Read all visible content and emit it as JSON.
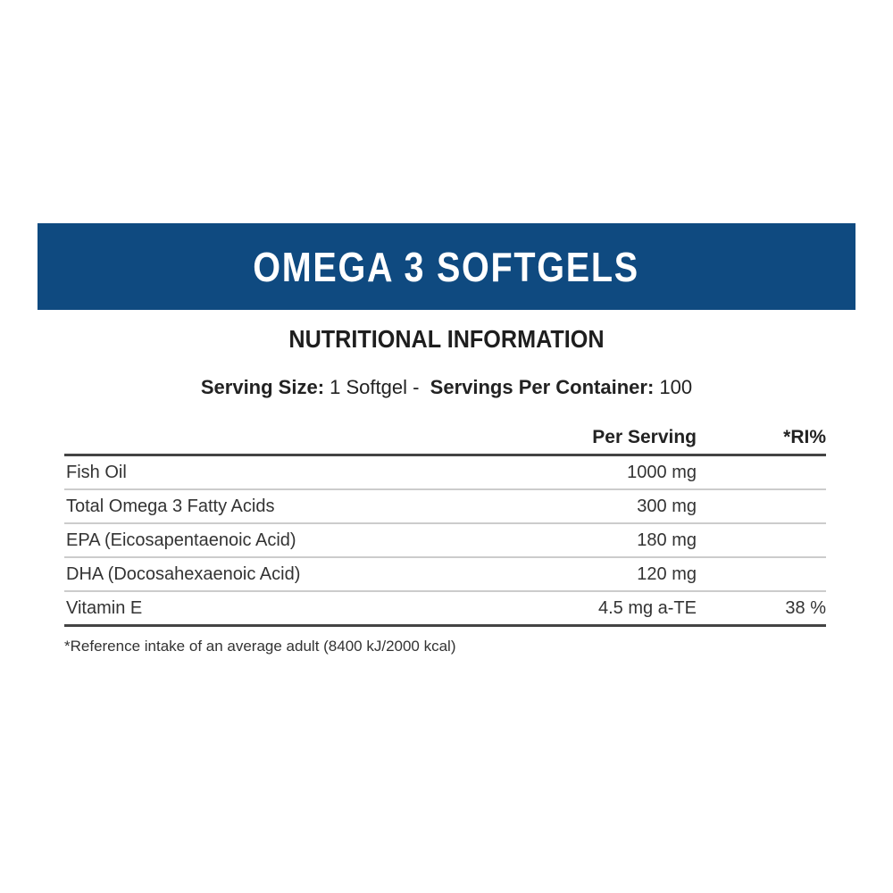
{
  "banner": {
    "title": "OMEGA 3 SOFTGELS",
    "color": "#0f4a80"
  },
  "subtitle": "NUTRITIONAL INFORMATION",
  "serving": {
    "size_label": "Serving Size:",
    "size_value": "1 Softgel -",
    "per_container_label": "Servings Per Container:",
    "per_container_value": "100"
  },
  "table": {
    "headers": [
      "",
      "Per Serving",
      "*RI%"
    ],
    "rows": [
      {
        "name": "Fish Oil",
        "per_serving": "1000 mg",
        "ri": ""
      },
      {
        "name": "Total Omega 3 Fatty Acids",
        "per_serving": "300 mg",
        "ri": ""
      },
      {
        "name": "EPA (Eicosapentaenoic Acid)",
        "per_serving": "180 mg",
        "ri": ""
      },
      {
        "name": "DHA (Docosahexaenoic Acid)",
        "per_serving": "120 mg",
        "ri": ""
      },
      {
        "name": "Vitamin E",
        "per_serving": "4.5 mg a-TE",
        "ri": "38 %"
      }
    ]
  },
  "footnote": "*Reference intake of an average adult (8400 kJ/2000 kcal)"
}
